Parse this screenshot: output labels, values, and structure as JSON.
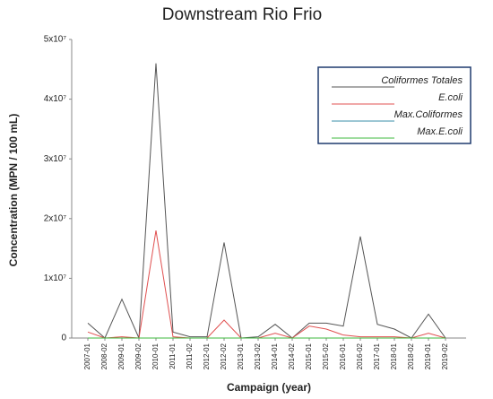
{
  "chart_data": {
    "type": "line",
    "title": "Downstream Rio Frio",
    "x_label": "Campaign (year)",
    "y_label": "Concentration (MPN / 100 mL)",
    "categories": [
      "2007-01",
      "2008-02",
      "2009-01",
      "2009-02",
      "2010-01",
      "2011-01",
      "2011-02",
      "2012-01",
      "2012-02",
      "2013-01",
      "2013-02",
      "2014-01",
      "2014-02",
      "2015-01",
      "2015-02",
      "2016-01",
      "2016-02",
      "2017-01",
      "2018-01",
      "2018-02",
      "2019-01",
      "2019-02"
    ],
    "series": [
      {
        "name": "Coliformes Totales",
        "color": "#555555",
        "values": [
          2500000,
          0,
          6500000,
          0,
          46000000,
          1000000,
          200000,
          200000,
          16000000,
          0,
          200000,
          2300000,
          0,
          2500000,
          2500000,
          2000000,
          17000000,
          2300000,
          1500000,
          0,
          4000000,
          0
        ]
      },
      {
        "name": "E.coli",
        "color": "#e05050",
        "values": [
          1000000,
          0,
          200000,
          0,
          18000000,
          200000,
          0,
          0,
          3000000,
          0,
          0,
          800000,
          0,
          2000000,
          1500000,
          500000,
          200000,
          200000,
          200000,
          0,
          800000,
          0
        ]
      },
      {
        "name": "Max.Coliformes",
        "color": "#3a8fa8",
        "values": [
          0,
          0,
          0,
          0,
          0,
          0,
          0,
          0,
          0,
          0,
          0,
          0,
          0,
          0,
          0,
          0,
          0,
          0,
          0,
          0,
          0,
          0
        ]
      },
      {
        "name": "Max.E.coli",
        "color": "#3cb83c",
        "values": [
          0,
          0,
          0,
          0,
          0,
          0,
          0,
          0,
          0,
          0,
          0,
          0,
          0,
          0,
          0,
          0,
          0,
          0,
          0,
          0,
          0,
          0
        ]
      }
    ],
    "ylim": [
      0,
      50000000
    ],
    "yticks": [
      0,
      {
        "value": 10000000,
        "label": "1x10⁷"
      },
      {
        "value": 20000000,
        "label": "2x10⁷"
      },
      {
        "value": 30000000,
        "label": "3x10⁷"
      },
      {
        "value": 40000000,
        "label": "4x10⁷"
      },
      {
        "value": 50000000,
        "label": "5x10⁷"
      }
    ],
    "legend": "upper right"
  }
}
